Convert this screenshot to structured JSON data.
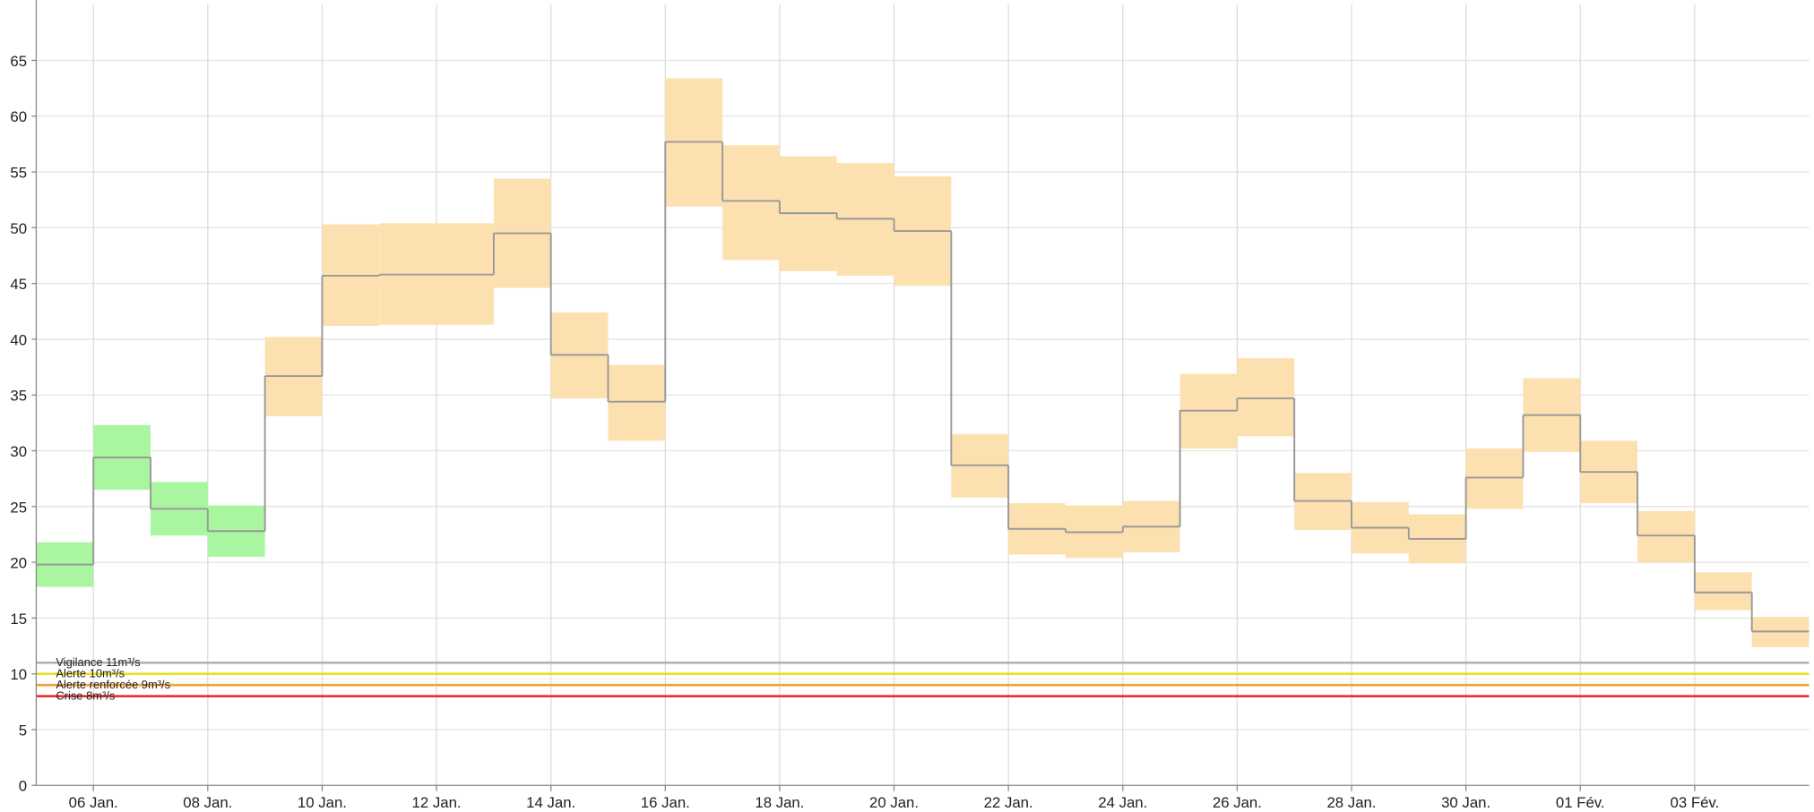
{
  "chart_data": {
    "type": "line",
    "step": true,
    "xlim": [
      0,
      31
    ],
    "xticks": [
      {
        "value": 1,
        "label": "06 Jan."
      },
      {
        "value": 3,
        "label": "08 Jan."
      },
      {
        "value": 5,
        "label": "10 Jan."
      },
      {
        "value": 7,
        "label": "12 Jan."
      },
      {
        "value": 9,
        "label": "14 Jan."
      },
      {
        "value": 11,
        "label": "16 Jan."
      },
      {
        "value": 13,
        "label": "18 Jan."
      },
      {
        "value": 15,
        "label": "20 Jan."
      },
      {
        "value": 17,
        "label": "22 Jan."
      },
      {
        "value": 19,
        "label": "24 Jan."
      },
      {
        "value": 21,
        "label": "26 Jan."
      },
      {
        "value": 23,
        "label": "28 Jan."
      },
      {
        "value": 25,
        "label": "30 Jan."
      },
      {
        "value": 27,
        "label": "01 Fév."
      },
      {
        "value": 29,
        "label": "03 Fév."
      }
    ],
    "ylim": [
      0,
      70
    ],
    "yticks": [
      0,
      5,
      10,
      15,
      20,
      25,
      30,
      35,
      40,
      45,
      50,
      55,
      60,
      65
    ],
    "grid": true,
    "line_color": "#999999",
    "values": [
      19.8,
      29.4,
      24.8,
      22.8,
      36.7,
      45.7,
      45.8,
      45.8,
      49.5,
      38.6,
      34.4,
      57.7,
      52.4,
      51.3,
      50.8,
      49.7,
      28.7,
      23.0,
      22.7,
      23.2,
      33.6,
      34.7,
      25.5,
      23.1,
      22.1,
      27.6,
      33.2,
      28.1,
      22.4,
      17.3,
      13.8
    ],
    "upper": [
      21.8,
      32.3,
      27.2,
      25.1,
      40.2,
      50.3,
      50.4,
      50.4,
      54.4,
      42.4,
      37.7,
      63.4,
      57.4,
      56.4,
      55.8,
      54.6,
      31.5,
      25.3,
      25.1,
      25.5,
      36.9,
      38.3,
      28.0,
      25.4,
      24.3,
      30.2,
      36.5,
      30.9,
      24.6,
      19.1,
      15.1
    ],
    "lower": [
      17.8,
      26.5,
      22.4,
      20.5,
      33.1,
      41.2,
      41.3,
      41.3,
      44.6,
      34.7,
      30.9,
      51.9,
      47.1,
      46.1,
      45.7,
      44.8,
      25.8,
      20.7,
      20.4,
      20.9,
      30.2,
      31.3,
      22.9,
      20.8,
      19.9,
      24.8,
      29.9,
      25.3,
      20.0,
      15.7,
      12.4
    ],
    "band_colors": [
      "#aaf5a0",
      "#aaf5a0",
      "#aaf5a0",
      "#aaf5a0",
      "#fde0b0",
      "#fde0b0",
      "#fde0b0",
      "#fde0b0",
      "#fde0b0",
      "#fde0b0",
      "#fde0b0",
      "#fde0b0",
      "#fde0b0",
      "#fde0b0",
      "#fde0b0",
      "#fde0b0",
      "#fde0b0",
      "#fde0b0",
      "#fde0b0",
      "#fde0b0",
      "#fde0b0",
      "#fde0b0",
      "#fde0b0",
      "#fde0b0",
      "#fde0b0",
      "#fde0b0",
      "#fde0b0",
      "#fde0b0",
      "#fde0b0",
      "#fde0b0",
      "#fde0b0"
    ],
    "thresholds": [
      {
        "label": "Vigilance 11m³/s",
        "value": 11,
        "color": "#b0b0b0"
      },
      {
        "label": "Alerte 10m³/s",
        "value": 10,
        "color": "#e8e020"
      },
      {
        "label": "Alerte renforcée 9m³/s",
        "value": 9,
        "color": "#f5a030"
      },
      {
        "label": "Crise 8m³/s",
        "value": 8,
        "color": "#f02020"
      }
    ]
  }
}
